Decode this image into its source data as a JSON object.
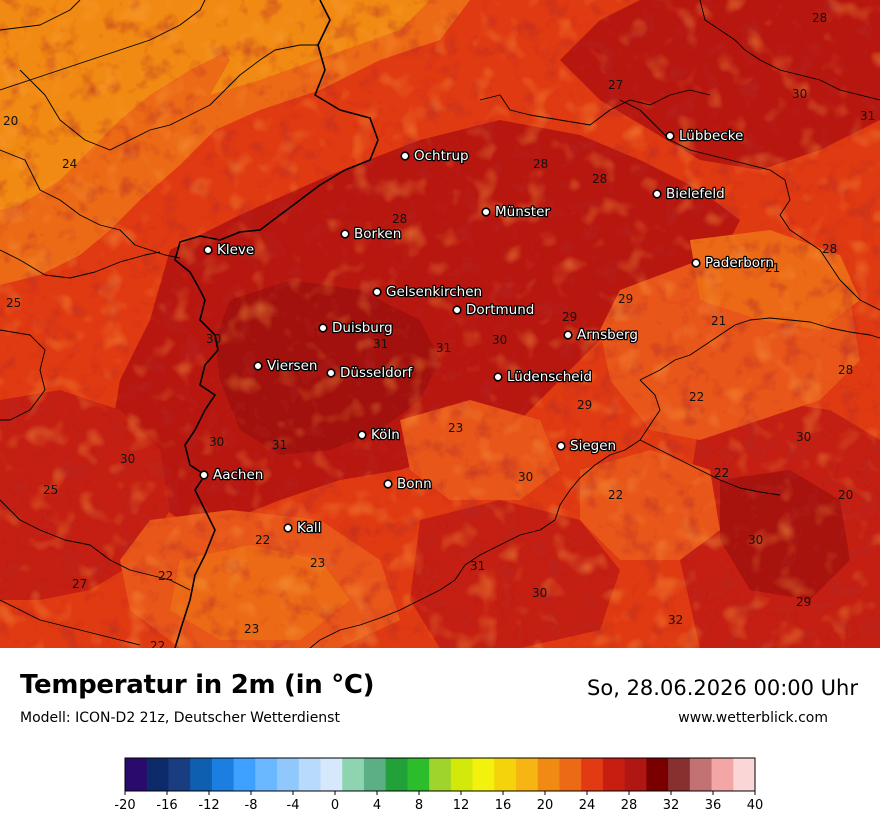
{
  "map": {
    "title": "Temperatur in 2m (in °C)",
    "model": "Modell: ICON-D2 21z, Deutscher Wetterdienst",
    "datetime": "So, 28.06.2026 00:00 Uhr",
    "website": "www.wetterblick.com",
    "cities": [
      {
        "name": "Ochtrup"
      },
      {
        "name": "Lübbecke"
      },
      {
        "name": "Münster"
      },
      {
        "name": "Bielefeld"
      },
      {
        "name": "Kleve"
      },
      {
        "name": "Borken"
      },
      {
        "name": "Paderborn"
      },
      {
        "name": "Gelsenkirchen"
      },
      {
        "name": "Dortmund"
      },
      {
        "name": "Duisburg"
      },
      {
        "name": "Arnsberg"
      },
      {
        "name": "Viersen"
      },
      {
        "name": "Düsseldorf"
      },
      {
        "name": "Lüdenscheid"
      },
      {
        "name": "Köln"
      },
      {
        "name": "Siegen"
      },
      {
        "name": "Aachen"
      },
      {
        "name": "Bonn"
      },
      {
        "name": "Kall"
      }
    ],
    "isotherm_labels": [
      "28",
      "27",
      "30",
      "31",
      "20",
      "24",
      "28",
      "28",
      "28",
      "25",
      "28",
      "29",
      "29",
      "31",
      "30",
      "30",
      "31",
      "21",
      "21",
      "28",
      "22",
      "29",
      "23",
      "30",
      "31",
      "30",
      "30",
      "25",
      "30",
      "22",
      "22",
      "20",
      "30",
      "23",
      "22",
      "27",
      "22",
      "31",
      "30",
      "29",
      "32",
      "23",
      "22"
    ]
  },
  "colorbar": {
    "ticks": [
      "-20",
      "-16",
      "-12",
      "-8",
      "-4",
      "0",
      "4",
      "8",
      "12",
      "16",
      "20",
      "24",
      "28",
      "32",
      "36",
      "40"
    ],
    "colors": [
      "#2b0a6e",
      "#0d2a6b",
      "#1a3d82",
      "#0f5fb0",
      "#1a7fe0",
      "#3ea0ff",
      "#6ab8ff",
      "#90c8fb",
      "#b8dafc",
      "#d6e8fb",
      "#8fd4b0",
      "#5cae84",
      "#22a13a",
      "#2bbd2b",
      "#9fd42c",
      "#d3e90c",
      "#f2f20c",
      "#f4d30d",
      "#f6b513",
      "#f18a12",
      "#ec6a16",
      "#e23a12",
      "#c71e12",
      "#b01612",
      "#7a0000",
      "#883030",
      "#c27272",
      "#f2a6a6",
      "#fbd6d6"
    ]
  }
}
